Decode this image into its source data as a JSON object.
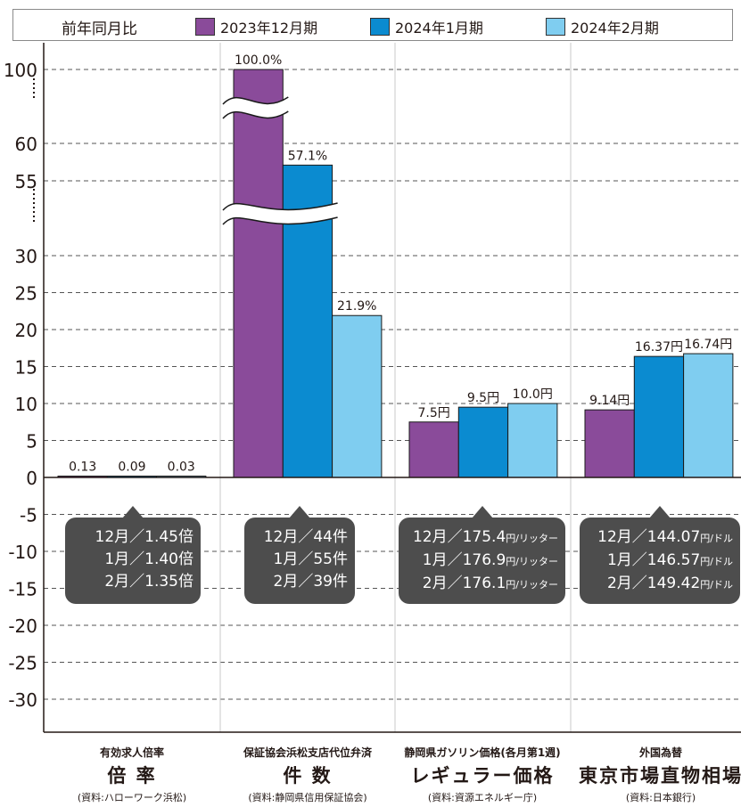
{
  "legend": {
    "title": "前年同月比",
    "items": [
      {
        "label": "2023年12月期",
        "color": "#8a4b9a"
      },
      {
        "label": "2024年1月期",
        "color": "#0b8bd0"
      },
      {
        "label": "2024年2月期",
        "color": "#7fcdf0"
      }
    ]
  },
  "chart_data": {
    "type": "bar",
    "axis_break": true,
    "grid": "dashed",
    "y_ticks": [
      "100",
      "60",
      "55",
      "30",
      "25",
      "20",
      "15",
      "10",
      "5",
      "0",
      "-5",
      "-10",
      "-15",
      "-20",
      "-25",
      "-30"
    ],
    "categories": [
      {
        "line1": "有効求人倍率",
        "line2": "倍 率",
        "source": "(資料:ハローワーク浜松)",
        "values": [
          0.13,
          0.09,
          0.03
        ],
        "labels": [
          "0.13",
          "0.09",
          "0.03"
        ],
        "callout": [
          {
            "main": "12月／1.45倍",
            "unit": ""
          },
          {
            "main": "1月／1.40倍",
            "unit": ""
          },
          {
            "main": "2月／1.35倍",
            "unit": ""
          }
        ]
      },
      {
        "line1": "保証協会浜松支店代位弁済",
        "line2": "件 数",
        "source": "(資料:静岡県信用保証協会)",
        "values": [
          100.0,
          57.1,
          21.9
        ],
        "labels": [
          "100.0%",
          "57.1%",
          "21.9%"
        ],
        "callout": [
          {
            "main": "12月／44件",
            "unit": ""
          },
          {
            "main": "1月／55件",
            "unit": ""
          },
          {
            "main": "2月／39件",
            "unit": ""
          }
        ]
      },
      {
        "line1": "静岡県ガソリン価格(各月第1週)",
        "line2": "レギュラー価格",
        "source": "(資料:資源エネルギー庁)",
        "values": [
          7.5,
          9.5,
          10.0
        ],
        "labels": [
          "7.5円",
          "9.5円",
          "10.0円"
        ],
        "callout": [
          {
            "main": "12月／175.4",
            "unit": "円/リッター"
          },
          {
            "main": "1月／176.9",
            "unit": "円/リッター"
          },
          {
            "main": "2月／176.1",
            "unit": "円/リッター"
          }
        ]
      },
      {
        "line1": "外国為替",
        "line2": "東京市場直物相場",
        "source": "(資料:日本銀行)",
        "values": [
          9.14,
          16.37,
          16.74
        ],
        "labels": [
          "9.14円",
          "16.37円",
          "16.74円"
        ],
        "callout": [
          {
            "main": "12月／144.07",
            "unit": "円/ドル"
          },
          {
            "main": "1月／146.57",
            "unit": "円/ドル"
          },
          {
            "main": "2月／149.42",
            "unit": "円/ドル"
          }
        ]
      }
    ]
  }
}
